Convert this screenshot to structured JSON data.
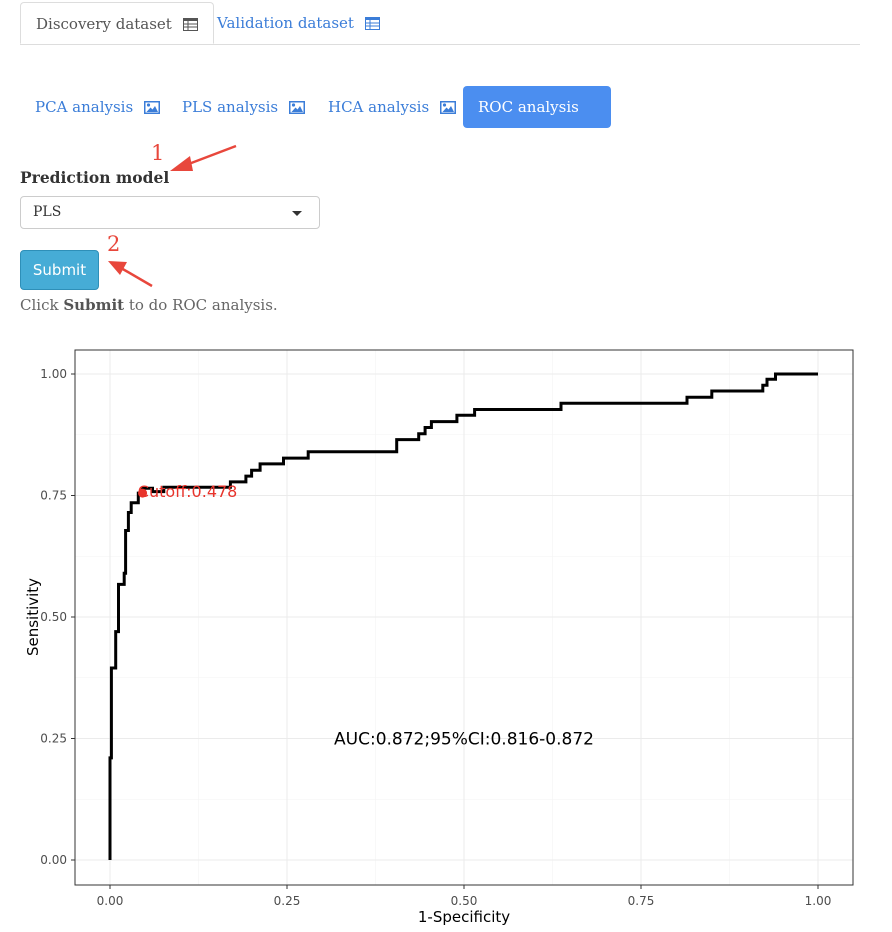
{
  "main_tabs": [
    {
      "label": "Discovery dataset",
      "icon": "table-icon",
      "active": true
    },
    {
      "label": "Validation dataset",
      "icon": "table-icon",
      "active": false
    }
  ],
  "sub_tabs": [
    {
      "label": "PCA analysis",
      "icon": "image-icon",
      "active": false
    },
    {
      "label": "PLS analysis",
      "icon": "image-icon",
      "active": false
    },
    {
      "label": "HCA analysis",
      "icon": "image-icon",
      "active": false
    },
    {
      "label": "ROC analysis",
      "icon": "image-icon",
      "active": true
    }
  ],
  "form": {
    "label": "Prediction model",
    "selected_model": "PLS",
    "submit_label": "Submit",
    "help_prefix": "Click ",
    "help_bold": "Submit",
    "help_suffix": " to do ROC analysis."
  },
  "annotations": {
    "first": "1",
    "second": "2",
    "color": "#e8473c"
  },
  "chart_data": {
    "type": "line",
    "title": "",
    "xlabel": "1-Specificity",
    "ylabel": "Sensitivity",
    "xlim": [
      -0.05,
      1.05
    ],
    "ylim": [
      -0.05,
      1.05
    ],
    "xticks": [
      "0.00",
      "0.25",
      "0.50",
      "0.75",
      "1.00"
    ],
    "yticks": [
      "0.00",
      "0.25",
      "0.50",
      "0.75",
      "1.00"
    ],
    "grid": true,
    "series": [
      {
        "color": "#000000",
        "x": [
          0.0,
          0.0,
          0.002,
          0.002,
          0.008,
          0.008,
          0.012,
          0.012,
          0.02,
          0.02,
          0.022,
          0.022,
          0.026,
          0.026,
          0.03,
          0.03,
          0.04,
          0.04,
          0.046,
          0.046,
          0.06,
          0.06,
          0.076,
          0.076,
          0.125,
          0.125,
          0.17,
          0.17,
          0.192,
          0.192,
          0.2,
          0.2,
          0.212,
          0.212,
          0.245,
          0.245,
          0.28,
          0.28,
          0.405,
          0.405,
          0.436,
          0.436,
          0.445,
          0.445,
          0.454,
          0.454,
          0.49,
          0.49,
          0.515,
          0.515,
          0.637,
          0.637,
          0.815,
          0.815,
          0.85,
          0.85,
          0.922,
          0.922,
          0.928,
          0.928,
          0.94,
          0.94,
          1.0
        ],
        "y": [
          0.0,
          0.21,
          0.21,
          0.395,
          0.395,
          0.47,
          0.47,
          0.567,
          0.567,
          0.59,
          0.59,
          0.678,
          0.678,
          0.715,
          0.715,
          0.735,
          0.735,
          0.755,
          0.755,
          0.765,
          0.765,
          0.758,
          0.758,
          0.767,
          0.767,
          0.767,
          0.767,
          0.778,
          0.778,
          0.79,
          0.79,
          0.802,
          0.802,
          0.815,
          0.815,
          0.827,
          0.827,
          0.84,
          0.84,
          0.865,
          0.865,
          0.877,
          0.877,
          0.89,
          0.89,
          0.902,
          0.902,
          0.915,
          0.915,
          0.927,
          0.927,
          0.94,
          0.94,
          0.952,
          0.952,
          0.965,
          0.965,
          0.977,
          0.977,
          0.989,
          0.989,
          1.0,
          1.0
        ]
      }
    ],
    "cutoff_point": {
      "x": 0.046,
      "y": 0.755,
      "label": "Cutoff:0.478",
      "color": "#e8342c"
    },
    "annotations": [
      {
        "text": "AUC:0.872;95%CI:0.816-0.872",
        "x": 0.5,
        "y": 0.25
      }
    ]
  }
}
